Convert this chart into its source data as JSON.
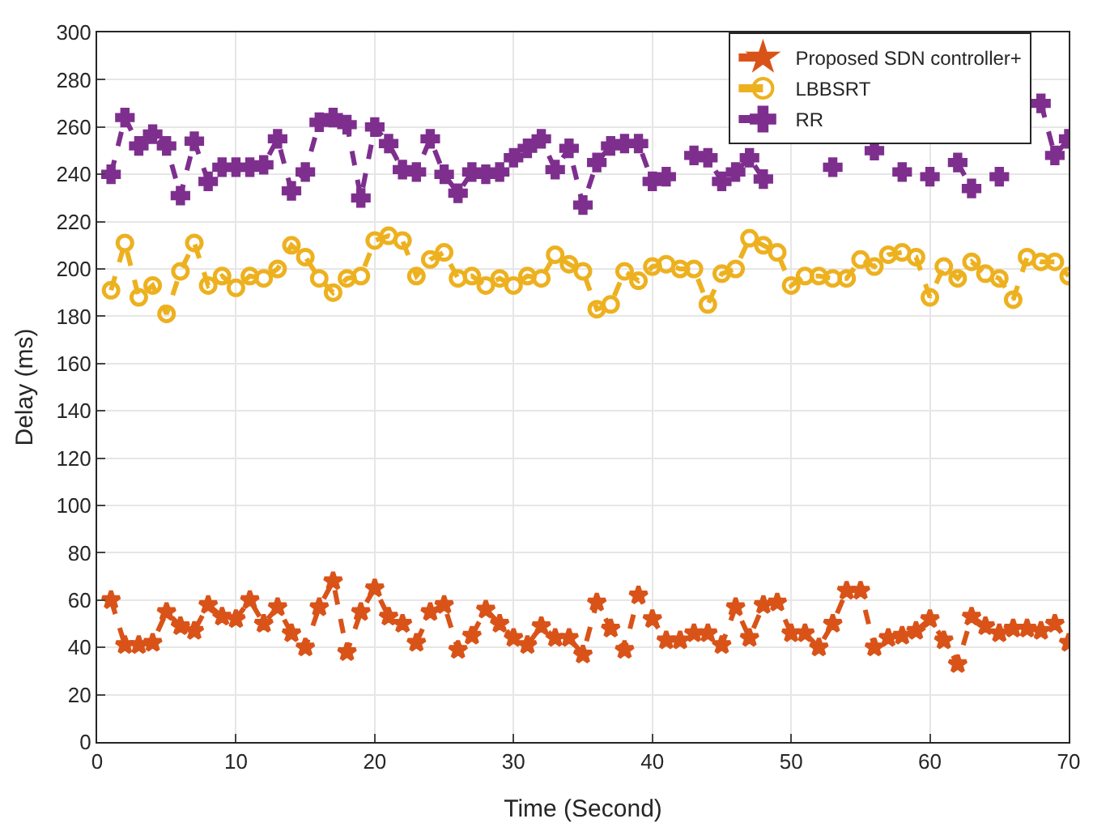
{
  "chart_data": {
    "type": "line",
    "xlabel": "Time (Second)",
    "ylabel": "Delay (ms)",
    "xlim": [
      0,
      70
    ],
    "xticks": [
      0,
      10,
      20,
      30,
      40,
      50,
      60,
      70
    ],
    "ylim": [
      0,
      300
    ],
    "yticks": [
      0,
      20,
      40,
      60,
      80,
      100,
      120,
      140,
      160,
      180,
      200,
      220,
      240,
      260,
      280,
      300
    ],
    "grid": true,
    "legend": "top right",
    "line_style": "dashed",
    "x": [
      1,
      2,
      3,
      4,
      5,
      6,
      7,
      8,
      9,
      10,
      11,
      12,
      13,
      14,
      15,
      16,
      17,
      18,
      19,
      20,
      21,
      22,
      23,
      24,
      25,
      26,
      27,
      28,
      29,
      30,
      31,
      32,
      33,
      34,
      35,
      36,
      37,
      38,
      39,
      40,
      41,
      42,
      43,
      44,
      45,
      46,
      47,
      48,
      49,
      50,
      51,
      52,
      53,
      54,
      55,
      56,
      57,
      58,
      59,
      60,
      61,
      62,
      63,
      64,
      65,
      66,
      67,
      68,
      69,
      70
    ],
    "series": [
      {
        "name": "Proposed SDN controller+",
        "color": "#d95319",
        "marker": "star",
        "values": [
          60,
          41,
          41,
          42,
          55,
          49,
          47,
          58,
          53,
          52,
          60,
          50,
          57,
          46,
          40,
          57,
          68,
          38,
          55,
          65,
          53,
          50,
          42,
          55,
          58,
          39,
          45,
          56,
          50,
          44,
          41,
          49,
          44,
          44,
          37,
          59,
          48,
          39,
          62,
          52,
          43,
          43,
          46,
          46,
          41,
          57,
          44,
          58,
          59,
          46,
          46,
          40,
          50,
          64,
          64,
          40,
          44,
          45,
          47,
          52,
          43,
          33,
          53,
          49,
          46,
          48,
          48,
          47,
          50,
          42
        ]
      },
      {
        "name": "LBBSRT",
        "color": "#edb120",
        "marker": "circle",
        "values": [
          191,
          211,
          188,
          193,
          181,
          199,
          211,
          193,
          197,
          192,
          197,
          196,
          200,
          210,
          205,
          196,
          190,
          196,
          197,
          212,
          214,
          212,
          197,
          204,
          207,
          196,
          197,
          193,
          196,
          193,
          197,
          196,
          206,
          202,
          199,
          183,
          185,
          199,
          195,
          201,
          202,
          200,
          200,
          185,
          198,
          200,
          213,
          210,
          207,
          193,
          197,
          197,
          196,
          196,
          204,
          201,
          206,
          207,
          205,
          188,
          201,
          196,
          203,
          198,
          196,
          187,
          205,
          203,
          203,
          197
        ]
      },
      {
        "name": "RR",
        "color": "#7e2f8e",
        "marker": "cross",
        "values": [
          240,
          264,
          252,
          257,
          252,
          231,
          254,
          237,
          243,
          243,
          243,
          244,
          255,
          233,
          241,
          262,
          264,
          261,
          230,
          260,
          253,
          242,
          241,
          255,
          240,
          232,
          241,
          240,
          241,
          247,
          251,
          255,
          242,
          251,
          227,
          245,
          252,
          253,
          253,
          237,
          239,
          null,
          248,
          247,
          237,
          241,
          247,
          238,
          null,
          null,
          null,
          null,
          243,
          null,
          null,
          250,
          null,
          241,
          null,
          239,
          null,
          245,
          234,
          null,
          239,
          null,
          null,
          270,
          248,
          255
        ]
      }
    ]
  }
}
